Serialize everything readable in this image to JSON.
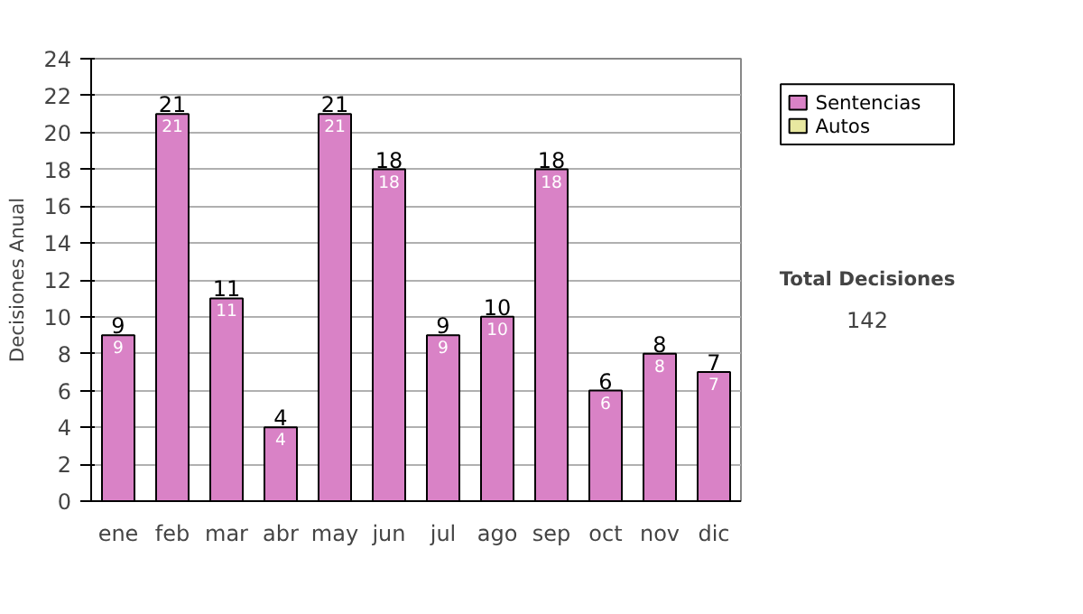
{
  "chart_data": {
    "type": "bar",
    "stacked": true,
    "ylabel": "Decisiones Anual",
    "categories": [
      "ene",
      "feb",
      "mar",
      "abr",
      "may",
      "jun",
      "jul",
      "ago",
      "sep",
      "oct",
      "nov",
      "dic"
    ],
    "series": [
      {
        "name": "Sentencias",
        "color": "#d982c6",
        "values": [
          9,
          21,
          11,
          4,
          21,
          18,
          9,
          10,
          18,
          6,
          8,
          7
        ],
        "value_labels": [
          "9",
          "21",
          "11",
          "4",
          "21",
          "18",
          "9",
          "10",
          "18",
          "6",
          "8",
          "7"
        ]
      },
      {
        "name": "Autos",
        "color": "#e8e8a0",
        "values": [
          0,
          0,
          0,
          0,
          0,
          0,
          0,
          0,
          0,
          0,
          0,
          0
        ]
      }
    ],
    "totals": [
      "9",
      "21",
      "11",
      "4",
      "21",
      "18",
      "9",
      "10",
      "18",
      "6",
      "8",
      "7"
    ],
    "ylim": [
      0,
      24
    ],
    "yticks": [
      0,
      2,
      4,
      6,
      8,
      10,
      12,
      14,
      16,
      18,
      20,
      22,
      24
    ],
    "grid": "y",
    "legend": "right",
    "annotations": [
      "Total Decisiones",
      "142"
    ]
  }
}
